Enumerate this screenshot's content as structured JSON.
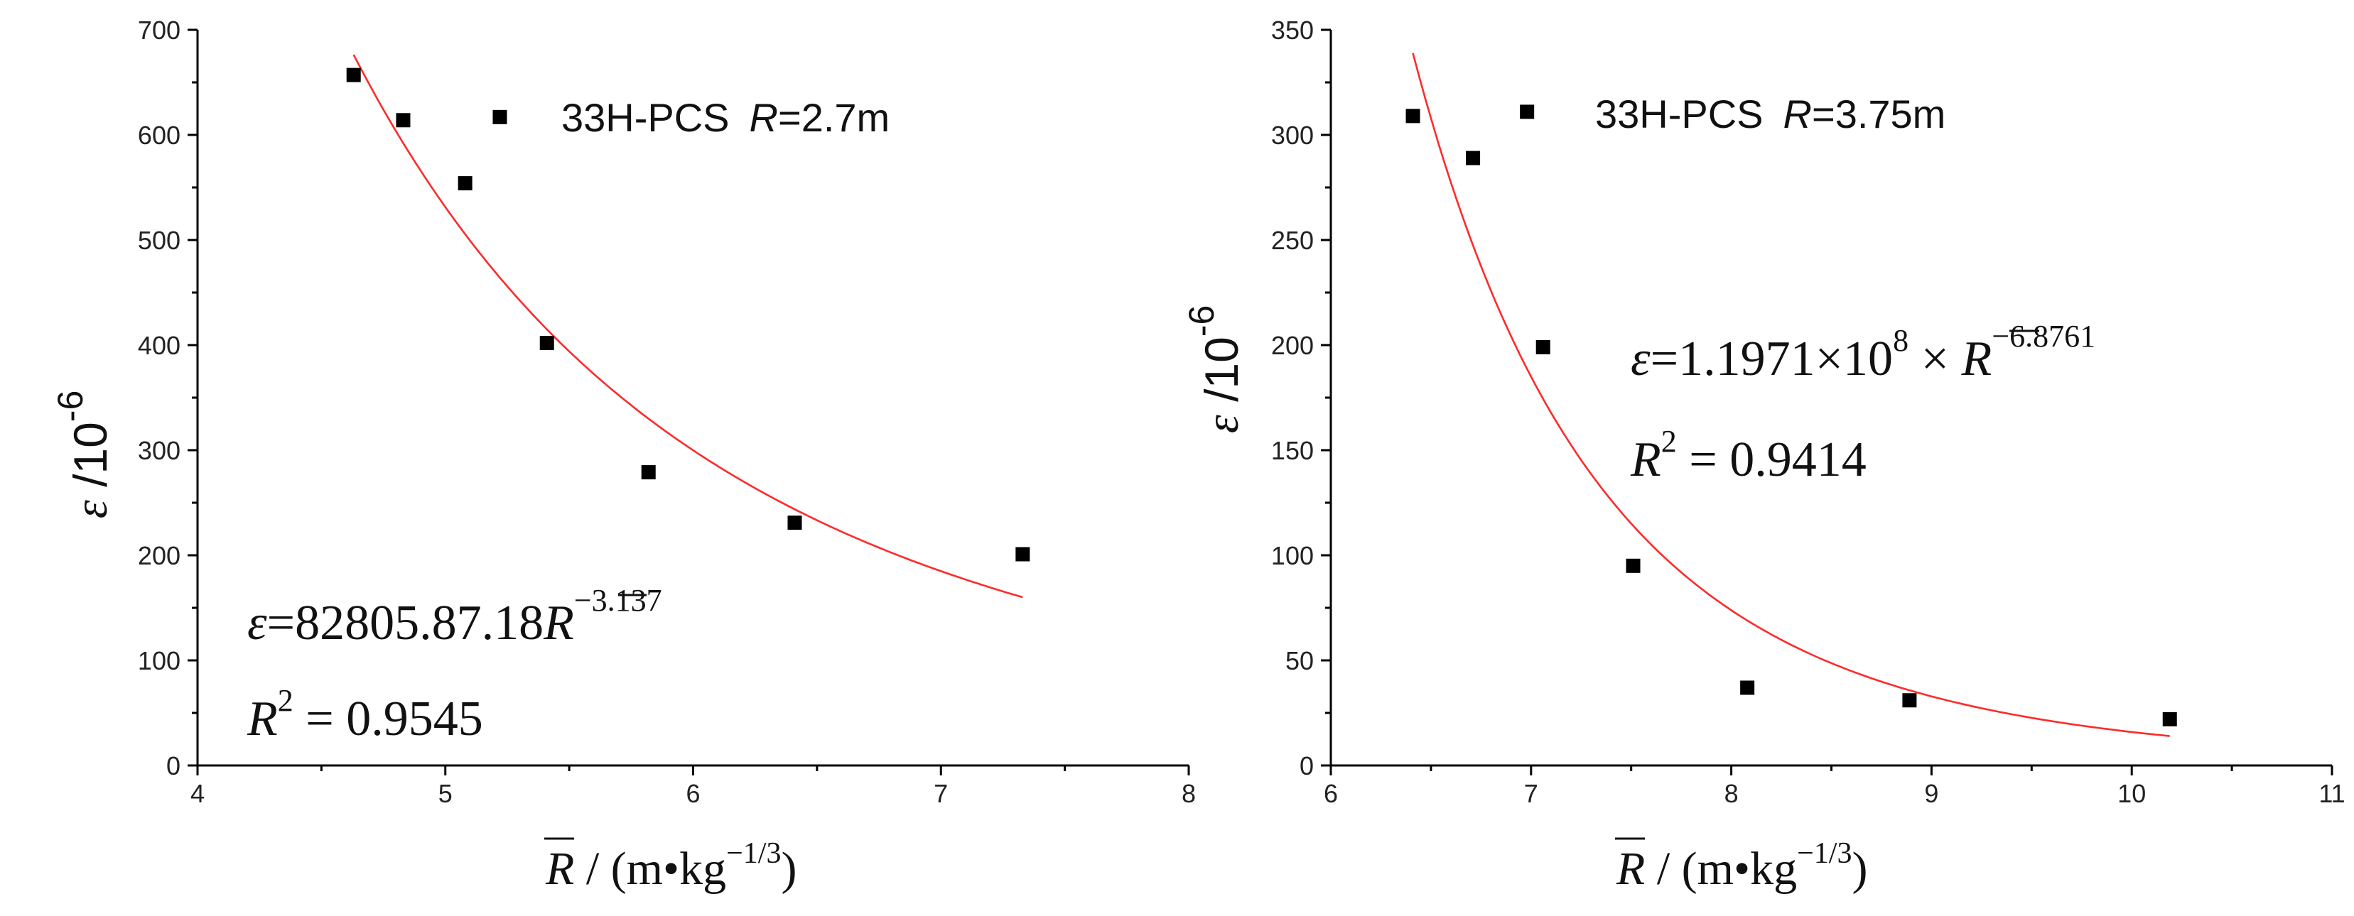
{
  "chart_data": [
    {
      "type": "scatter",
      "series_label_name": "33H-PCS",
      "series_label_r": "R",
      "series_label_eq": "=2.7m",
      "xlabel": {
        "symbol": "R",
        "unit_open": " / (m•kg",
        "exponent": "−1/3",
        "unit_close": ")"
      },
      "ylabel": {
        "symbol": "ε",
        "unit": " /10",
        "exponent": "-6"
      },
      "xlim": [
        4,
        8
      ],
      "ylim": [
        0,
        700
      ],
      "xticks": [
        4,
        5,
        6,
        7,
        8
      ],
      "yticks": [
        0,
        100,
        200,
        300,
        400,
        500,
        600,
        700
      ],
      "points": [
        {
          "x": 4.63,
          "y": 657
        },
        {
          "x": 4.83,
          "y": 614
        },
        {
          "x": 5.08,
          "y": 554
        },
        {
          "x": 5.22,
          "y": 617
        },
        {
          "x": 5.41,
          "y": 402
        },
        {
          "x": 5.82,
          "y": 279
        },
        {
          "x": 6.41,
          "y": 231
        },
        {
          "x": 7.33,
          "y": 201
        }
      ],
      "fit": {
        "a": 82805.87,
        "b": -3.137,
        "x_range": [
          4.63,
          7.33
        ],
        "color": "#ff2a2a"
      },
      "equation": {
        "lhs": "ε",
        "rhs": "=82805.87.18",
        "var": "R",
        "exponent": "−3.137"
      },
      "r2": {
        "symbol": "R",
        "power": "2",
        "text": " = 0.9545"
      }
    },
    {
      "type": "scatter",
      "series_label_name": "33H-PCS",
      "series_label_r": "R",
      "series_label_eq": "=3.75m",
      "xlabel": {
        "symbol": "R",
        "unit_open": " / (m•kg",
        "exponent": "−1/3",
        "unit_close": ")"
      },
      "ylabel": {
        "symbol": "ε",
        "unit": " /10",
        "exponent": "-6"
      },
      "xlim": [
        6,
        11
      ],
      "ylim": [
        0,
        350
      ],
      "xticks": [
        6,
        7,
        8,
        9,
        10,
        11
      ],
      "yticks": [
        0,
        50,
        100,
        150,
        200,
        250,
        300,
        350
      ],
      "points": [
        {
          "x": 6.41,
          "y": 309
        },
        {
          "x": 6.71,
          "y": 289
        },
        {
          "x": 6.98,
          "y": 311
        },
        {
          "x": 7.06,
          "y": 199
        },
        {
          "x": 7.51,
          "y": 95
        },
        {
          "x": 8.08,
          "y": 37
        },
        {
          "x": 8.89,
          "y": 31
        },
        {
          "x": 10.19,
          "y": 22
        }
      ],
      "fit": {
        "a": 119710000,
        "b": -6.8761,
        "x_range": [
          6.41,
          10.19
        ],
        "color": "#ff2a2a"
      },
      "equation": {
        "lhs": "ε",
        "rhs": "=1.1971×10",
        "power": "8",
        "mult": " × ",
        "var": "R",
        "exponent": "−6.8761"
      },
      "r2": {
        "symbol": "R",
        "power": "2",
        "text": " = 0.9414"
      }
    }
  ]
}
